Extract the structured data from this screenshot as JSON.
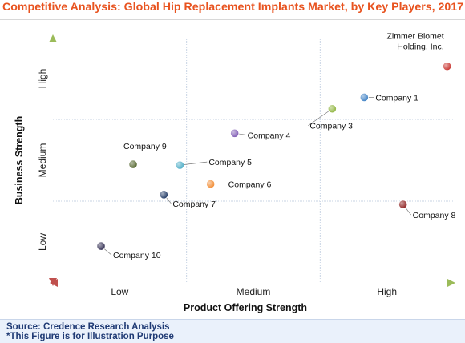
{
  "title": "Competitive Analysis: Global Hip Replacement Implants Market, by Key Players, 2017",
  "footer": {
    "source": "Source: Credence Research Analysis",
    "note": "*This Figure is for Illustration Purpose"
  },
  "chart_data": {
    "type": "scatter",
    "xlabel": "Product Offering Strength",
    "ylabel": "Business Strength",
    "x_categories": [
      "Low",
      "Medium",
      "High"
    ],
    "y_categories": [
      "Low",
      "Medium",
      "High"
    ],
    "xlim": [
      0,
      3
    ],
    "ylim": [
      0,
      3
    ],
    "grid": true,
    "points": [
      {
        "label": "Zimmer Biomet Holding, Inc.",
        "x": 2.95,
        "y": 2.65,
        "color": "#c8312c"
      },
      {
        "label": "Company 1",
        "x": 2.33,
        "y": 2.27,
        "color": "#3b7fc4"
      },
      {
        "label": "Company 3",
        "x": 2.09,
        "y": 2.13,
        "color": "#8db33a"
      },
      {
        "label": "Company 4",
        "x": 1.36,
        "y": 1.83,
        "color": "#7d58b3"
      },
      {
        "label": "Company 5",
        "x": 0.95,
        "y": 1.44,
        "color": "#4bacc6"
      },
      {
        "label": "Company 9",
        "x": 0.6,
        "y": 1.45,
        "color": "#4f6228"
      },
      {
        "label": "Company 6",
        "x": 1.18,
        "y": 1.21,
        "color": "#f28a30"
      },
      {
        "label": "Company 7",
        "x": 0.83,
        "y": 1.08,
        "color": "#1f3864"
      },
      {
        "label": "Company 8",
        "x": 2.62,
        "y": 0.96,
        "color": "#8b1a1a"
      },
      {
        "label": "Company 10",
        "x": 0.36,
        "y": 0.45,
        "color": "#2e2a4f"
      }
    ]
  }
}
